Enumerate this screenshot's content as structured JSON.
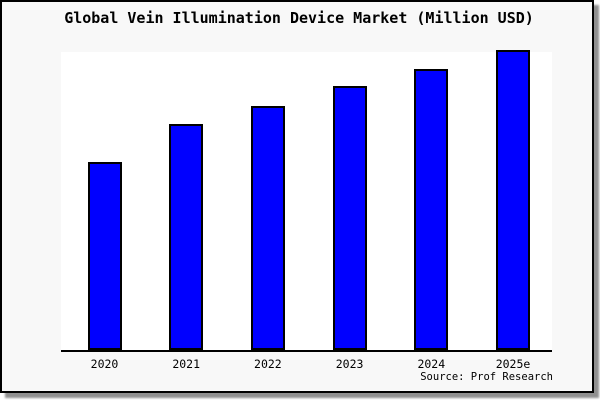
{
  "colors": {
    "canvas_background": "#f8f8f8",
    "plot_background": "#ffffff",
    "frame_border": "#000000",
    "shadow": "#8f8f8f",
    "bar_fill": "#0000ff",
    "bar_outline": "#000000",
    "text": "#000000"
  },
  "chart_data": {
    "type": "bar",
    "title": "Global Vein Illumination Device Market (Million USD)",
    "categories": [
      "2020",
      "2021",
      "2022",
      "2023",
      "2024",
      "2025e"
    ],
    "values": [
      62.7,
      75.2,
      81.3,
      88.0,
      93.7,
      100.0
    ],
    "value_scale_note": "no y-axis shown; values are relative index estimated from bar heights with tallest bar (2025e) = 100",
    "xlabel": "",
    "ylabel": "",
    "ylim": [
      0,
      100
    ],
    "grid": false,
    "legend": false,
    "bar_color": "#0000ff",
    "bar_border_color": "#000000",
    "source_note": "Source: Prof Research"
  }
}
